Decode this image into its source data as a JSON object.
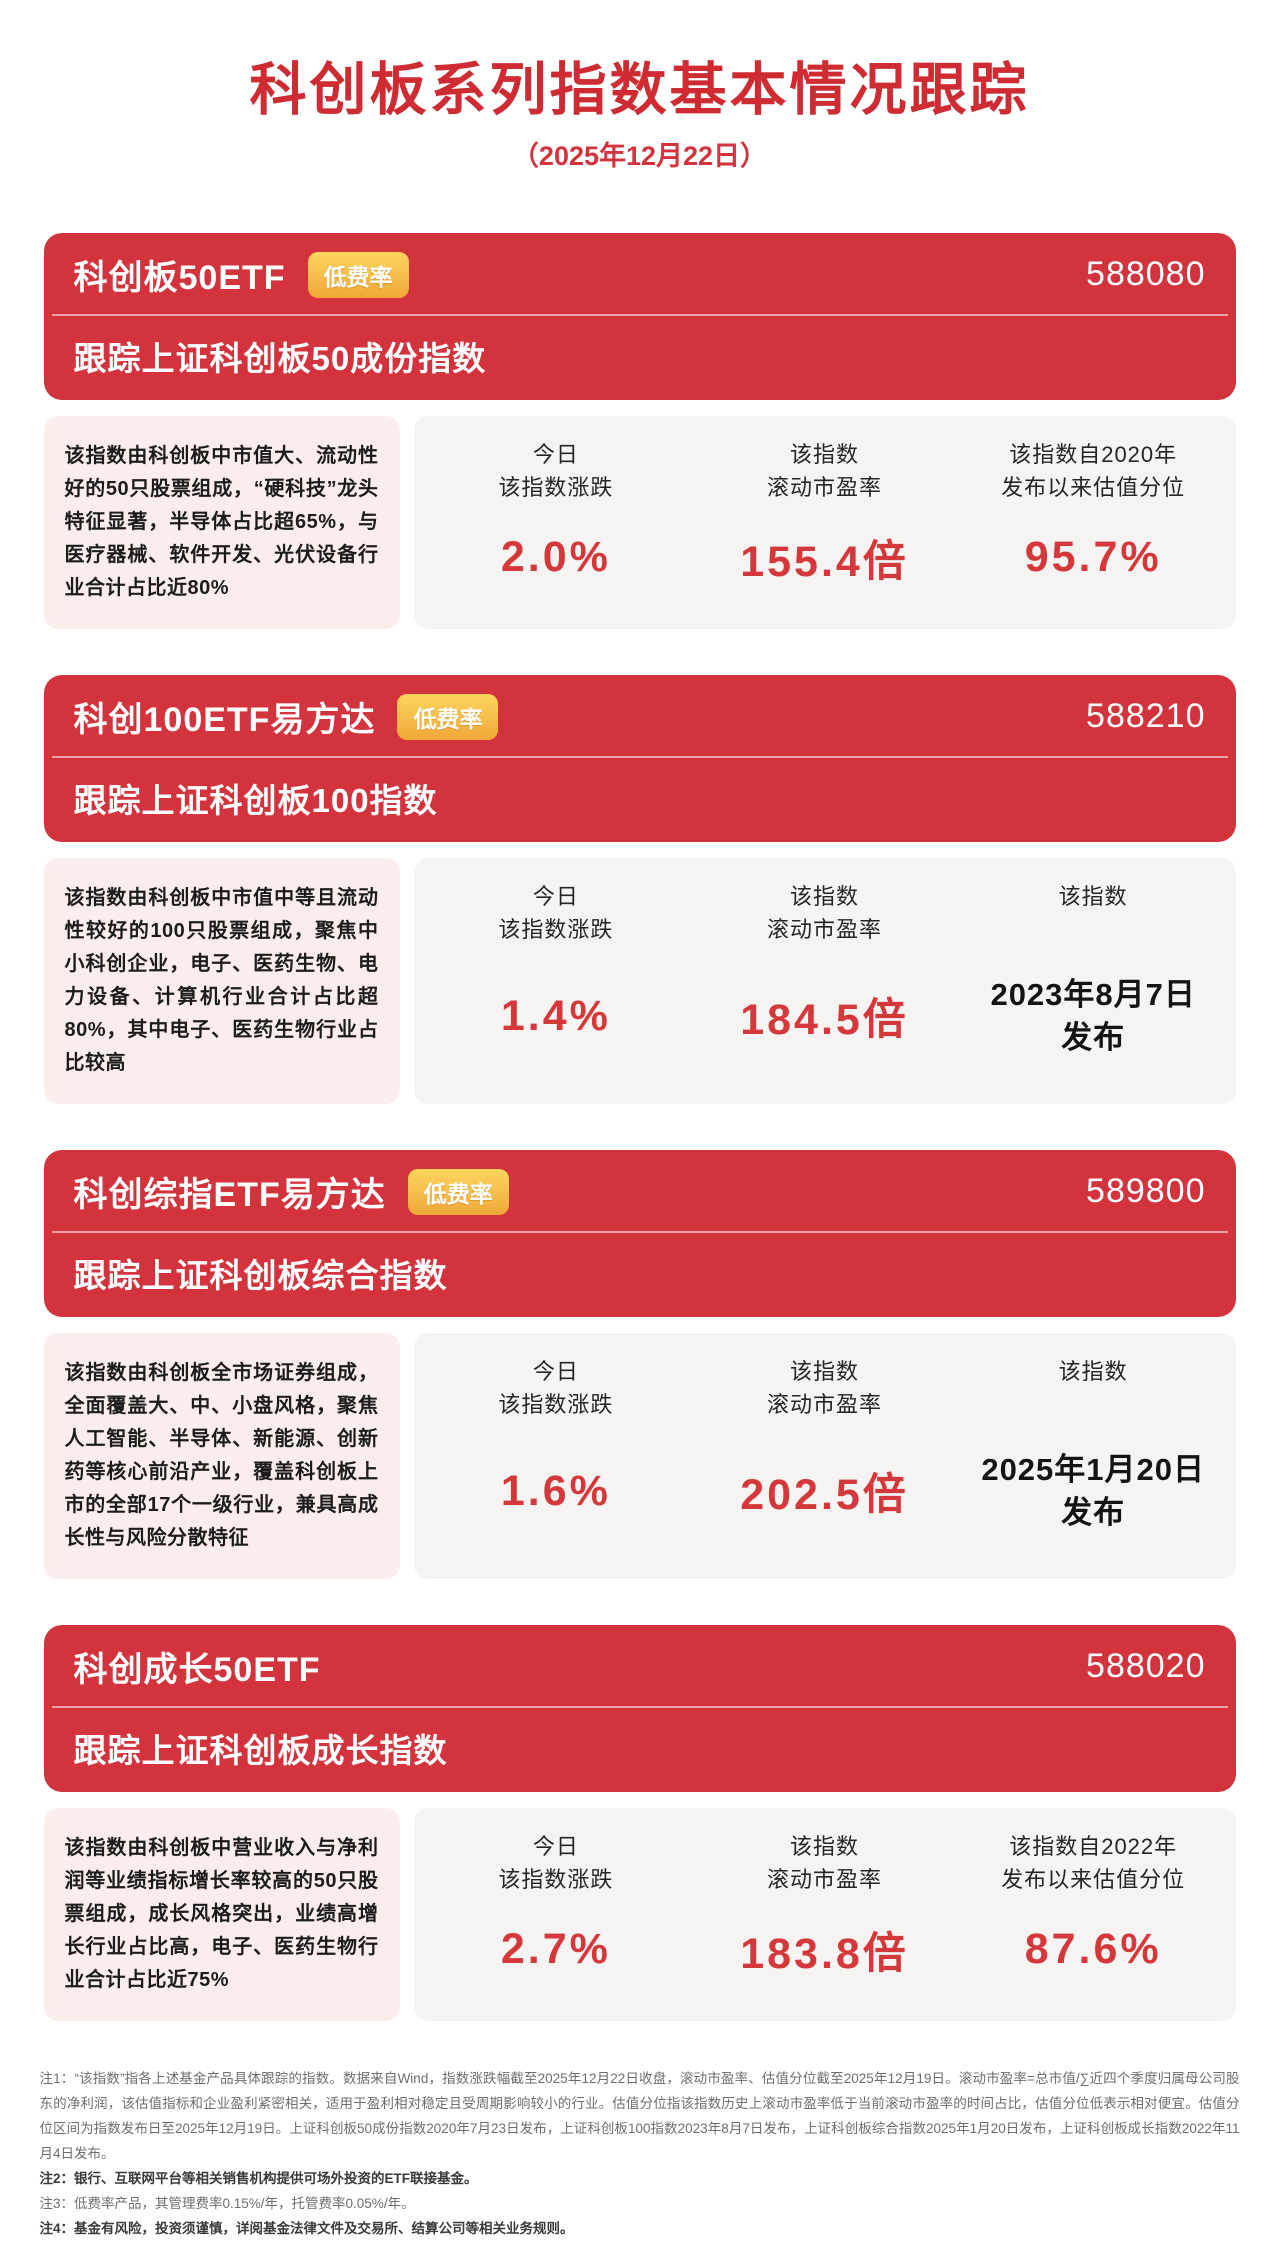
{
  "page": {
    "title": "科创板系列指数基本情况跟踪",
    "date": "（2025年12月22日）"
  },
  "badge_label": "低费率",
  "colors": {
    "primary_red": "#d3333c",
    "value_red": "#d5383a",
    "badge_yellow": "#f0a838",
    "description_pink": "#fceded",
    "stats_gray": "#f5f4f3"
  },
  "cards": [
    {
      "name": "科创板50ETF",
      "has_badge": true,
      "code": "588080",
      "tracking": "跟踪上证科创板50成份指数",
      "description": "该指数由科创板中市值大、流动性好的50只股票组成，“硬科技”龙头特征显著，半导体占比超65%，与医疗器械、软件开发、光伏设备行业合计占比近80%",
      "stats": [
        {
          "label_l1": "今日",
          "label_l2": "该指数涨跌",
          "value_l1": "2.0%",
          "value_l2": "",
          "style": "red"
        },
        {
          "label_l1": "该指数",
          "label_l2": "滚动市盈率",
          "value_l1": "155.4倍",
          "value_l2": "",
          "style": "red"
        },
        {
          "label_l1": "该指数自2020年",
          "label_l2": "发布以来估值分位",
          "value_l1": "95.7%",
          "value_l2": "",
          "style": "red"
        }
      ]
    },
    {
      "name": "科创100ETF易方达",
      "has_badge": true,
      "code": "588210",
      "tracking": "跟踪上证科创板100指数",
      "description": "该指数由科创板中市值中等且流动性较好的100只股票组成，聚焦中小科创企业，电子、医药生物、电力设备、计算机行业合计占比超80%，其中电子、医药生物行业占比较高",
      "stats": [
        {
          "label_l1": "今日",
          "label_l2": "该指数涨跌",
          "value_l1": "1.4%",
          "value_l2": "",
          "style": "red"
        },
        {
          "label_l1": "该指数",
          "label_l2": "滚动市盈率",
          "value_l1": "184.5倍",
          "value_l2": "",
          "style": "red"
        },
        {
          "label_l1": "该指数",
          "label_l2": "",
          "value_l1": "2023年8月7日",
          "value_l2": "发布",
          "style": "dark"
        }
      ]
    },
    {
      "name": "科创综指ETF易方达",
      "has_badge": true,
      "code": "589800",
      "tracking": "跟踪上证科创板综合指数",
      "description": "该指数由科创板全市场证券组成，全面覆盖大、中、小盘风格，聚焦人工智能、半导体、新能源、创新药等核心前沿产业，覆盖科创板上市的全部17个一级行业，兼具高成长性与风险分散特征",
      "stats": [
        {
          "label_l1": "今日",
          "label_l2": "该指数涨跌",
          "value_l1": "1.6%",
          "value_l2": "",
          "style": "red"
        },
        {
          "label_l1": "该指数",
          "label_l2": "滚动市盈率",
          "value_l1": "202.5倍",
          "value_l2": "",
          "style": "red"
        },
        {
          "label_l1": "该指数",
          "label_l2": "",
          "value_l1": "2025年1月20日",
          "value_l2": "发布",
          "style": "dark"
        }
      ]
    },
    {
      "name": "科创成长50ETF",
      "has_badge": false,
      "code": "588020",
      "tracking": "跟踪上证科创板成长指数",
      "description": "该指数由科创板中营业收入与净利润等业绩指标增长率较高的50只股票组成，成长风格突出，业绩高增长行业占比高，电子、医药生物行业合计占比近75%",
      "stats": [
        {
          "label_l1": "今日",
          "label_l2": "该指数涨跌",
          "value_l1": "2.7%",
          "value_l2": "",
          "style": "red"
        },
        {
          "label_l1": "该指数",
          "label_l2": "滚动市盈率",
          "value_l1": "183.8倍",
          "value_l2": "",
          "style": "red"
        },
        {
          "label_l1": "该指数自2022年",
          "label_l2": "发布以来估值分位",
          "value_l1": "87.6%",
          "value_l2": "",
          "style": "red"
        }
      ]
    }
  ],
  "notes": [
    {
      "text": "注1：“该指数”指各上述基金产品具体跟踪的指数。数据来自Wind，指数涨跌幅截至2025年12月22日收盘，滚动市盈率、估值分位截至2025年12月19日。滚动市盈率=总市值/∑近四个季度归属母公司股东的净利润，该估值指标和企业盈利紧密相关，适用于盈利相对稳定且受周期影响较小的行业。估值分位指该指数历史上滚动市盈率低于当前滚动市盈率的时间占比，估值分位低表示相对便宜。估值分位区间为指数发布日至2025年12月19日。上证科创板50成份指数2020年7月23日发布，上证科创板100指数2023年8月7日发布，上证科创板综合指数2025年1月20日发布，上证科创板成长指数2022年11月4日发布。",
      "emphasis": false
    },
    {
      "text": "注2：银行、互联网平台等相关销售机构提供可场外投资的ETF联接基金。",
      "emphasis": true
    },
    {
      "text": "注3：低费率产品，其管理费率0.15%/年，托管费率0.05%/年。",
      "emphasis": false
    },
    {
      "text": "注4：基金有风险，投资须谨慎，详阅基金法律文件及交易所、结算公司等相关业务规则。",
      "emphasis": true
    }
  ]
}
